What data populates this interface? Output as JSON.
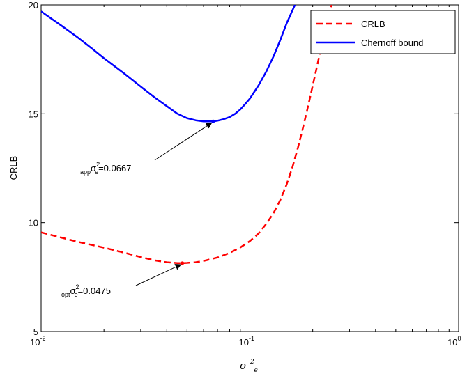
{
  "chart_data": {
    "type": "line",
    "xscale": "log",
    "xlim": [
      0.01,
      1
    ],
    "ylim": [
      5,
      20
    ],
    "xlabel": {
      "base": "σ",
      "sup": "2",
      "sub": "e"
    },
    "ylabel": "CRLB",
    "x_ticks": [
      {
        "value": 0.01,
        "base": "10",
        "exp": "-2"
      },
      {
        "value": 0.1,
        "base": "10",
        "exp": "-1"
      },
      {
        "value": 1,
        "base": "10",
        "exp": "0"
      }
    ],
    "y_ticks": [
      {
        "value": 5,
        "label": "5"
      },
      {
        "value": 10,
        "label": "10"
      },
      {
        "value": 15,
        "label": "15"
      },
      {
        "value": 20,
        "label": "20"
      }
    ],
    "legend_position": "top-right",
    "series": [
      {
        "name": "CRLB",
        "color": "#ff0000",
        "style": "dashed",
        "x": [
          0.01,
          0.015,
          0.02,
          0.025,
          0.03,
          0.035,
          0.04,
          0.045,
          0.0475,
          0.05,
          0.055,
          0.06,
          0.07,
          0.08,
          0.09,
          0.1,
          0.11,
          0.12,
          0.13,
          0.14,
          0.15,
          0.16,
          0.17,
          0.18,
          0.19,
          0.2,
          0.21,
          0.22,
          0.23,
          0.24,
          0.25
        ],
        "y": [
          9.55,
          9.12,
          8.85,
          8.62,
          8.42,
          8.27,
          8.18,
          8.14,
          8.14,
          8.15,
          8.18,
          8.24,
          8.4,
          8.61,
          8.86,
          9.15,
          9.5,
          9.95,
          10.45,
          11.05,
          11.75,
          12.55,
          13.45,
          14.4,
          15.35,
          16.3,
          17.2,
          18.1,
          18.9,
          19.6,
          20.2
        ]
      },
      {
        "name": "Chernoff bound",
        "color": "#0000ff",
        "style": "solid",
        "x": [
          0.01,
          0.0125,
          0.015,
          0.0175,
          0.02,
          0.025,
          0.03,
          0.035,
          0.04,
          0.045,
          0.05,
          0.055,
          0.06,
          0.0667,
          0.07,
          0.075,
          0.08,
          0.085,
          0.09,
          0.095,
          0.1,
          0.11,
          0.12,
          0.13,
          0.14,
          0.15,
          0.16,
          0.17
        ],
        "y": [
          19.7,
          19.05,
          18.5,
          18.0,
          17.55,
          16.85,
          16.25,
          15.75,
          15.35,
          15.0,
          14.8,
          14.7,
          14.65,
          14.65,
          14.68,
          14.75,
          14.85,
          15.0,
          15.2,
          15.45,
          15.7,
          16.3,
          16.95,
          17.65,
          18.4,
          19.15,
          19.75,
          20.3
        ]
      }
    ],
    "annotations": [
      {
        "name": "app-annotation",
        "prefix": "app",
        "symbol": "σ",
        "sup": "2",
        "sub": "e",
        "value_text": "=0.0667",
        "point": {
          "x": 0.0667,
          "y": 14.65
        },
        "marker_color": "#0000ff"
      },
      {
        "name": "opt-annotation",
        "prefix": "opt",
        "symbol": "σ",
        "sup": "2",
        "sub": "e",
        "value_text": "=0.0475",
        "point": {
          "x": 0.0475,
          "y": 8.14
        },
        "marker_color": "#ff0000"
      }
    ]
  }
}
